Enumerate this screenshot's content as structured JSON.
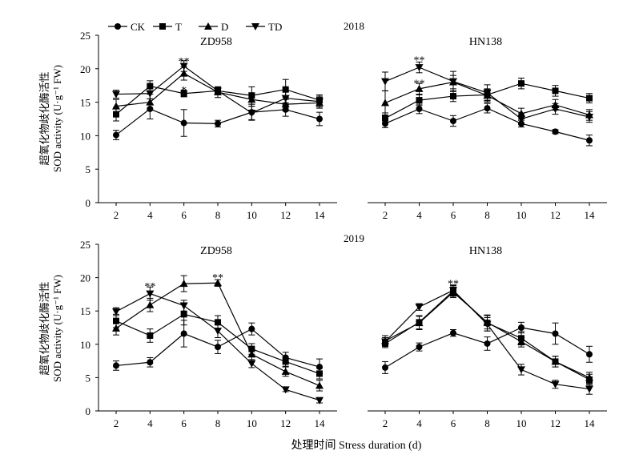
{
  "legend": {
    "entries": [
      {
        "label": "CK",
        "marker": "circle"
      },
      {
        "label": "T",
        "marker": "square"
      },
      {
        "label": "D",
        "marker": "triangle-up"
      },
      {
        "label": "TD",
        "marker": "triangle-down"
      }
    ]
  },
  "year_labels": [
    "2018",
    "2019"
  ],
  "ylabel_cn": "超氧化物歧化酶活性",
  "ylabel_en": "SOD activity (U·g⁻¹ FW)",
  "xlabel": "处理时间 Stress duration (d)",
  "line_color": "#000000",
  "chart_data": [
    {
      "type": "line",
      "title": "ZD958",
      "year": "2018",
      "x": [
        2,
        4,
        6,
        8,
        10,
        12,
        14
      ],
      "ylim": [
        0,
        25
      ],
      "yticks": [
        0,
        5,
        10,
        15,
        20,
        25
      ],
      "series": [
        {
          "name": "CK",
          "marker": "circle",
          "values": [
            10.1,
            14.0,
            11.9,
            11.8,
            13.5,
            13.9,
            12.5
          ],
          "err": [
            0.7,
            1.5,
            2.0,
            0.5,
            1.2,
            1.0,
            1.0
          ]
        },
        {
          "name": "T",
          "marker": "square",
          "values": [
            13.2,
            17.4,
            16.3,
            16.7,
            16.0,
            16.9,
            15.3
          ],
          "err": [
            1.0,
            0.8,
            0.5,
            0.5,
            1.3,
            1.5,
            0.8
          ]
        },
        {
          "name": "D",
          "marker": "triangle-up",
          "values": [
            14.4,
            15.0,
            19.3,
            16.5,
            15.4,
            14.7,
            14.9
          ],
          "err": [
            1.0,
            1.2,
            1.0,
            0.8,
            1.0,
            1.0,
            0.8
          ]
        },
        {
          "name": "TD",
          "marker": "triangle-down",
          "values": [
            16.2,
            16.3,
            20.4,
            16.7,
            13.4,
            15.6,
            15.1
          ],
          "err": [
            0.6,
            0.8,
            0.8,
            0.6,
            1.0,
            1.0,
            0.8
          ]
        }
      ],
      "annotations": [
        {
          "x": 6,
          "y": 21.3,
          "text": "**"
        },
        {
          "x": 6,
          "y": 17.0,
          "text": "*"
        }
      ]
    },
    {
      "type": "line",
      "title": "HN138",
      "year": "2018",
      "x": [
        2,
        4,
        6,
        8,
        10,
        12,
        14
      ],
      "ylim": [
        0,
        25
      ],
      "yticks": [
        0,
        5,
        10,
        15,
        20,
        25
      ],
      "series": [
        {
          "name": "CK",
          "marker": "circle",
          "values": [
            11.8,
            14.0,
            12.2,
            14.1,
            11.8,
            10.6,
            9.3
          ],
          "err": [
            0.6,
            0.7,
            0.8,
            0.7,
            0.5,
            0.3,
            0.8
          ]
        },
        {
          "name": "T",
          "marker": "square",
          "values": [
            12.6,
            15.3,
            15.9,
            16.1,
            17.8,
            16.7,
            15.6
          ],
          "err": [
            0.8,
            0.8,
            0.8,
            0.8,
            0.8,
            0.8,
            0.7
          ]
        },
        {
          "name": "D",
          "marker": "triangle-up",
          "values": [
            14.9,
            17.0,
            18.0,
            16.0,
            13.3,
            14.6,
            13.1
          ],
          "err": [
            1.8,
            0.8,
            1.0,
            1.0,
            0.8,
            0.8,
            0.8
          ]
        },
        {
          "name": "TD",
          "marker": "triangle-down",
          "values": [
            18.1,
            20.2,
            18.1,
            16.4,
            12.5,
            14.0,
            12.8
          ],
          "err": [
            1.4,
            0.8,
            1.5,
            1.2,
            0.8,
            0.8,
            0.8
          ]
        }
      ],
      "annotations": [
        {
          "x": 4,
          "y": 21.5,
          "text": "**"
        },
        {
          "x": 4,
          "y": 18.0,
          "text": "**"
        }
      ]
    },
    {
      "type": "line",
      "title": "ZD958",
      "year": "2019",
      "x": [
        2,
        4,
        6,
        8,
        10,
        12,
        14
      ],
      "ylim": [
        0,
        25
      ],
      "yticks": [
        0,
        5,
        10,
        15,
        20,
        25
      ],
      "series": [
        {
          "name": "CK",
          "marker": "circle",
          "values": [
            6.8,
            7.3,
            11.6,
            9.6,
            12.3,
            8.0,
            6.6
          ],
          "err": [
            0.7,
            0.7,
            2.0,
            1.0,
            0.9,
            0.8,
            1.2
          ]
        },
        {
          "name": "T",
          "marker": "square",
          "values": [
            13.5,
            11.3,
            14.5,
            13.3,
            9.3,
            7.4,
            5.6
          ],
          "err": [
            1.0,
            1.0,
            1.6,
            1.0,
            0.8,
            0.7,
            0.8
          ]
        },
        {
          "name": "D",
          "marker": "triangle-up",
          "values": [
            12.4,
            15.9,
            19.1,
            19.2,
            8.5,
            5.9,
            3.8
          ],
          "err": [
            1.0,
            1.0,
            1.2,
            0.5,
            0.8,
            0.7,
            0.8
          ]
        },
        {
          "name": "TD",
          "marker": "triangle-down",
          "values": [
            14.9,
            17.6,
            15.8,
            12.0,
            7.1,
            3.2,
            1.6
          ],
          "err": [
            0.6,
            1.0,
            0.8,
            1.0,
            0.6,
            0.3,
            0.4
          ]
        }
      ],
      "annotations": [
        {
          "x": 4,
          "y": 18.9,
          "text": "**"
        },
        {
          "x": 8,
          "y": 20.2,
          "text": "**"
        }
      ]
    },
    {
      "type": "line",
      "title": "HN138",
      "year": "2019",
      "x": [
        2,
        4,
        6,
        8,
        10,
        12,
        14
      ],
      "ylim": [
        0,
        25
      ],
      "yticks": [
        0,
        5,
        10,
        15,
        20,
        25
      ],
      "series": [
        {
          "name": "CK",
          "marker": "circle",
          "values": [
            6.5,
            9.6,
            11.7,
            10.1,
            12.5,
            11.6,
            8.5
          ],
          "err": [
            0.9,
            0.6,
            0.5,
            1.0,
            0.8,
            1.6,
            1.2
          ]
        },
        {
          "name": "T",
          "marker": "square",
          "values": [
            10.1,
            13.3,
            18.0,
            13.2,
            10.9,
            7.4,
            4.7
          ],
          "err": [
            0.6,
            1.0,
            0.8,
            1.2,
            1.0,
            0.8,
            0.8
          ]
        },
        {
          "name": "D",
          "marker": "triangle-up",
          "values": [
            10.5,
            13.2,
            17.8,
            13.3,
            10.4,
            7.4,
            5.0
          ],
          "err": [
            0.8,
            1.0,
            0.8,
            1.0,
            0.8,
            0.8,
            0.8
          ]
        },
        {
          "name": "TD",
          "marker": "triangle-down",
          "values": [
            10.4,
            15.6,
            18.1,
            13.0,
            6.2,
            4.0,
            3.3
          ],
          "err": [
            0.6,
            0.5,
            0.8,
            1.0,
            0.8,
            0.6,
            0.8
          ]
        }
      ],
      "annotations": [
        {
          "x": 6,
          "y": 19.3,
          "text": "**"
        }
      ]
    }
  ]
}
